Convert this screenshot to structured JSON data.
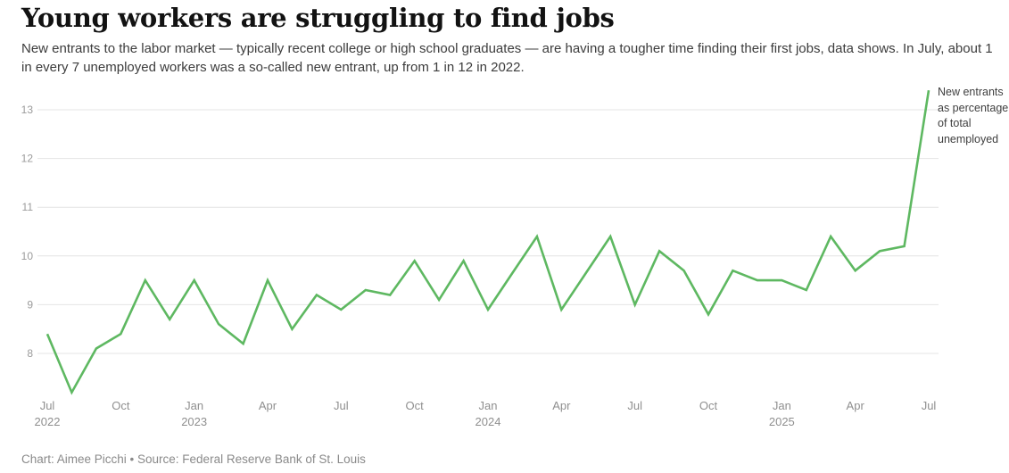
{
  "header": {
    "title": "Young workers are struggling to find jobs",
    "subtitle": "New entrants to the labor market — typically recent college or high school graduates — are having a tougher time finding their first jobs, data shows. In July, about 1 in every 7 unemployed workers was a so-called new entrant, up from 1 in 12 in 2022."
  },
  "chart_data": {
    "type": "line",
    "title": "Young workers are struggling to find jobs",
    "xlabel": "",
    "ylabel": "",
    "grid": "horizontal-only",
    "legend_position": "annotation-right-of-line-end",
    "line_color": "#5eb861",
    "gridline_color": "#e4e4e4",
    "axis_label_color": "#9b9b9b",
    "ylim": [
      7.1,
      13.6
    ],
    "y_ticks": [
      8,
      9,
      10,
      11,
      12,
      13
    ],
    "annotation": "New entrants as percentage of total unemployed",
    "x": [
      "Jul 2022",
      "Aug 2022",
      "Sep 2022",
      "Oct 2022",
      "Nov 2022",
      "Dec 2022",
      "Jan 2023",
      "Feb 2023",
      "Mar 2023",
      "Apr 2023",
      "May 2023",
      "Jun 2023",
      "Jul 2023",
      "Aug 2023",
      "Sep 2023",
      "Oct 2023",
      "Nov 2023",
      "Dec 2023",
      "Jan 2024",
      "Feb 2024",
      "Mar 2024",
      "Apr 2024",
      "May 2024",
      "Jun 2024",
      "Jul 2024",
      "Aug 2024",
      "Sep 2024",
      "Oct 2024",
      "Nov 2024",
      "Dec 2024",
      "Jan 2025",
      "Feb 2025",
      "Mar 2025",
      "Apr 2025",
      "May 2025",
      "Jun 2025",
      "Jul 2025"
    ],
    "series": [
      {
        "name": "New entrants as percentage of total unemployed",
        "values": [
          8.4,
          7.2,
          8.1,
          8.4,
          9.5,
          8.7,
          9.5,
          8.6,
          8.2,
          9.5,
          8.5,
          9.2,
          8.9,
          9.3,
          9.2,
          9.9,
          9.1,
          9.9,
          8.9,
          9.65,
          10.4,
          8.9,
          9.65,
          10.4,
          9.0,
          10.1,
          9.7,
          8.8,
          9.7,
          9.5,
          9.5,
          9.3,
          10.4,
          9.7,
          10.1,
          10.2,
          13.4
        ]
      }
    ],
    "x_ticks": [
      {
        "i": 0,
        "month": "Jul",
        "year": "2022"
      },
      {
        "i": 3,
        "month": "Oct",
        "year": ""
      },
      {
        "i": 6,
        "month": "Jan",
        "year": "2023"
      },
      {
        "i": 9,
        "month": "Apr",
        "year": ""
      },
      {
        "i": 12,
        "month": "Jul",
        "year": ""
      },
      {
        "i": 15,
        "month": "Oct",
        "year": ""
      },
      {
        "i": 18,
        "month": "Jan",
        "year": "2024"
      },
      {
        "i": 21,
        "month": "Apr",
        "year": ""
      },
      {
        "i": 24,
        "month": "Jul",
        "year": ""
      },
      {
        "i": 27,
        "month": "Oct",
        "year": ""
      },
      {
        "i": 30,
        "month": "Jan",
        "year": "2025"
      },
      {
        "i": 33,
        "month": "Apr",
        "year": ""
      },
      {
        "i": 36,
        "month": "Jul",
        "year": ""
      }
    ]
  },
  "footer": {
    "credit": "Chart: Aimee Picchi • Source: Federal Reserve Bank of St. Louis"
  }
}
